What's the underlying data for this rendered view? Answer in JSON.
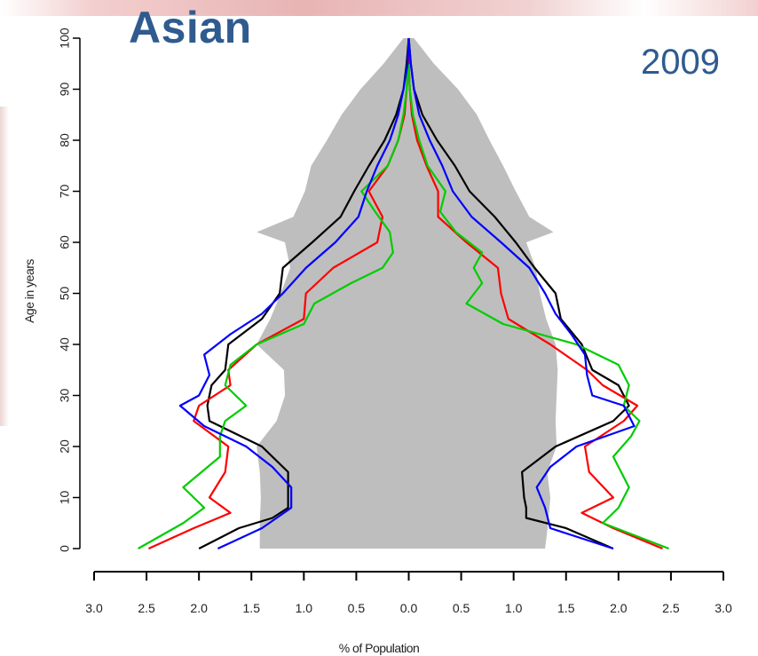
{
  "chart_data": {
    "type": "line",
    "title": "Asian",
    "subtitle": "2009",
    "xlabel": "% of Population",
    "ylabel": "Age in years",
    "xlim": [
      -3.0,
      3.0
    ],
    "ylim": [
      0,
      100
    ],
    "x_tick_labels": [
      "3.0",
      "2.5",
      "2.0",
      "1.5",
      "1.0",
      "0.5",
      "0.0",
      "0.5",
      "1.0",
      "1.5",
      "2.0",
      "2.5",
      "3.0"
    ],
    "x_tick_values": [
      -3.0,
      -2.5,
      -2.0,
      -1.5,
      -1.0,
      -0.5,
      0.0,
      0.5,
      1.0,
      1.5,
      2.0,
      2.5,
      3.0
    ],
    "y_ticks": [
      0,
      10,
      20,
      30,
      40,
      50,
      60,
      70,
      80,
      90,
      100
    ],
    "grid": false,
    "background_pyramid": {
      "color": "#bebebe",
      "ages": [
        0,
        5,
        10,
        15,
        20,
        25,
        30,
        35,
        40,
        45,
        50,
        55,
        60,
        62,
        65,
        70,
        75,
        80,
        85,
        90,
        95,
        100
      ],
      "left": [
        -1.42,
        -1.42,
        -1.41,
        -1.42,
        -1.45,
        -1.26,
        -1.18,
        -1.19,
        -1.45,
        -1.32,
        -1.22,
        -1.13,
        -1.18,
        -1.45,
        -1.1,
        -0.99,
        -0.93,
        -0.78,
        -0.64,
        -0.46,
        -0.24,
        -0.05
      ],
      "right": [
        1.3,
        1.33,
        1.35,
        1.32,
        1.41,
        1.4,
        1.41,
        1.42,
        1.4,
        1.31,
        1.25,
        1.21,
        1.12,
        1.38,
        1.15,
        1.02,
        0.9,
        0.77,
        0.65,
        0.47,
        0.24,
        0.05
      ]
    },
    "series": [
      {
        "color": "#000000",
        "ages": [
          0,
          4,
          6,
          8,
          10,
          15,
          20,
          25,
          28,
          32,
          35,
          40,
          45,
          50,
          55,
          60,
          65,
          70,
          75,
          80,
          85,
          90,
          95,
          100
        ],
        "left": [
          -2.0,
          -1.62,
          -1.3,
          -1.15,
          -1.15,
          -1.15,
          -1.4,
          -1.9,
          -1.92,
          -1.88,
          -1.75,
          -1.72,
          -1.4,
          -1.23,
          -1.2,
          -0.92,
          -0.65,
          -0.52,
          -0.38,
          -0.23,
          -0.12,
          -0.05,
          -0.02,
          0.0
        ],
        "right": [
          1.95,
          1.5,
          1.12,
          1.12,
          1.1,
          1.08,
          1.4,
          1.95,
          2.1,
          2.0,
          1.75,
          1.65,
          1.45,
          1.4,
          1.2,
          1.02,
          0.82,
          0.58,
          0.44,
          0.27,
          0.13,
          0.05,
          0.02,
          0.0
        ]
      },
      {
        "color": "#ff0000",
        "ages": [
          0,
          4,
          7,
          10,
          15,
          20,
          25,
          28,
          32,
          35,
          40,
          45,
          50,
          55,
          60,
          65,
          70,
          75,
          80,
          85,
          90,
          95,
          100
        ],
        "left": [
          -2.48,
          -2.05,
          -1.7,
          -1.9,
          -1.75,
          -1.72,
          -2.05,
          -2.0,
          -1.7,
          -1.72,
          -1.45,
          -1.0,
          -0.98,
          -0.72,
          -0.3,
          -0.25,
          -0.38,
          -0.2,
          -0.1,
          -0.04,
          -0.02,
          0.0,
          0.0
        ],
        "right": [
          2.42,
          1.95,
          1.65,
          1.95,
          1.72,
          1.68,
          2.05,
          2.18,
          1.85,
          1.7,
          1.35,
          0.95,
          0.88,
          0.85,
          0.55,
          0.28,
          0.28,
          0.17,
          0.08,
          0.03,
          0.01,
          0.0,
          0.0
        ]
      },
      {
        "color": "#00cc00",
        "ages": [
          0,
          5,
          8,
          12,
          18,
          22,
          25,
          28,
          32,
          36,
          40,
          44,
          48,
          52,
          55,
          58,
          62,
          66,
          70,
          75,
          80,
          85,
          90,
          95
        ],
        "left": [
          -2.58,
          -2.15,
          -1.95,
          -2.15,
          -1.8,
          -1.8,
          -1.75,
          -1.55,
          -1.75,
          -1.7,
          -1.45,
          -1.0,
          -0.9,
          -0.55,
          -0.25,
          -0.15,
          -0.18,
          -0.32,
          -0.45,
          -0.2,
          -0.1,
          -0.05,
          -0.02,
          0.0
        ],
        "right": [
          2.48,
          1.85,
          2.0,
          2.1,
          1.95,
          2.12,
          2.2,
          2.05,
          2.1,
          2.0,
          1.6,
          0.9,
          0.55,
          0.7,
          0.62,
          0.7,
          0.45,
          0.3,
          0.35,
          0.18,
          0.1,
          0.04,
          0.01,
          0.0
        ]
      },
      {
        "color": "#0000ff",
        "ages": [
          0,
          4,
          8,
          12,
          16,
          20,
          24,
          28,
          30,
          34,
          38,
          42,
          46,
          50,
          55,
          60,
          65,
          70,
          75,
          80,
          85,
          90,
          95,
          100
        ],
        "left": [
          -1.82,
          -1.4,
          -1.12,
          -1.12,
          -1.3,
          -1.55,
          -1.95,
          -2.18,
          -2.0,
          -1.9,
          -1.95,
          -1.7,
          -1.4,
          -1.2,
          -0.98,
          -0.7,
          -0.48,
          -0.4,
          -0.3,
          -0.18,
          -0.1,
          -0.05,
          -0.01,
          0.0
        ],
        "right": [
          1.95,
          1.35,
          1.3,
          1.22,
          1.35,
          1.6,
          2.15,
          2.05,
          1.75,
          1.7,
          1.68,
          1.55,
          1.4,
          1.3,
          1.15,
          0.88,
          0.6,
          0.42,
          0.32,
          0.2,
          0.1,
          0.05,
          0.02,
          0.0
        ]
      }
    ]
  }
}
